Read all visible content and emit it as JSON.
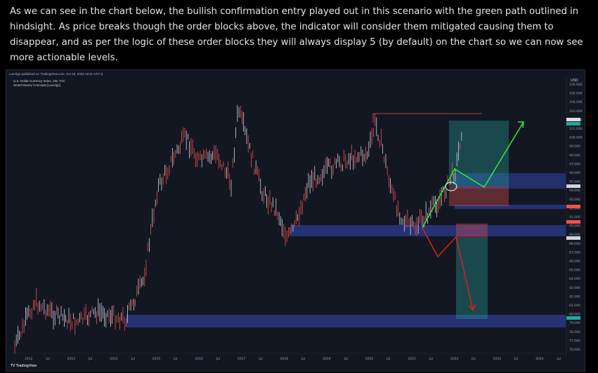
{
  "caption": "As we can see in the chart below, the bullish confirmation entry played out in this scenario with the green path outlined in hindsight. As price breaks though the order blocks above, the indicator will consider them mitigated causing them to disappear, and as per the logic of these order blocks they will always display 5 (by default) on the chart so we can now see more actionable levels.",
  "chart": {
    "publisher": "LuxAlgo published on TradingView.com, Oct 18, 2022 18:11 UTC-5",
    "symbol": "U.S. Dollar Currency Index, 1W, TVC",
    "indicator": "Smart Money Concepts [LuxAlgo]",
    "currency": "USD",
    "logo_text": "TradingView",
    "y_ticks": [
      "106.000",
      "105.000",
      "104.000",
      "103.000",
      "102.000",
      "101.000",
      "100.000",
      "99.000",
      "98.000",
      "97.000",
      "96.000",
      "95.000",
      "94.000",
      "93.000",
      "92.000",
      "91.000",
      "90.000",
      "89.000",
      "88.000",
      "87.000",
      "86.000",
      "85.000",
      "84.000",
      "83.000",
      "82.000",
      "81.000",
      "80.000",
      "79.000",
      "78.000",
      "77.000",
      "76.000"
    ],
    "x_ticks": [
      "2012",
      "Jul",
      "2013",
      "Jul",
      "2014",
      "Jul",
      "2015",
      "Jul",
      "2016",
      "Jul",
      "2017",
      "Jul",
      "2018",
      "Jul",
      "2019",
      "Jul",
      "2020",
      "Jul",
      "2021",
      "Jul",
      "2022",
      "Jul",
      "2023",
      "Jul",
      "2024",
      "Jul"
    ],
    "colors": {
      "background": "#131722",
      "order_block": "#2a3a8a",
      "bullish": "#26a69a",
      "bearish": "#ef5350",
      "green_path": "#39e83a",
      "red_path": "#e01e1e"
    }
  }
}
